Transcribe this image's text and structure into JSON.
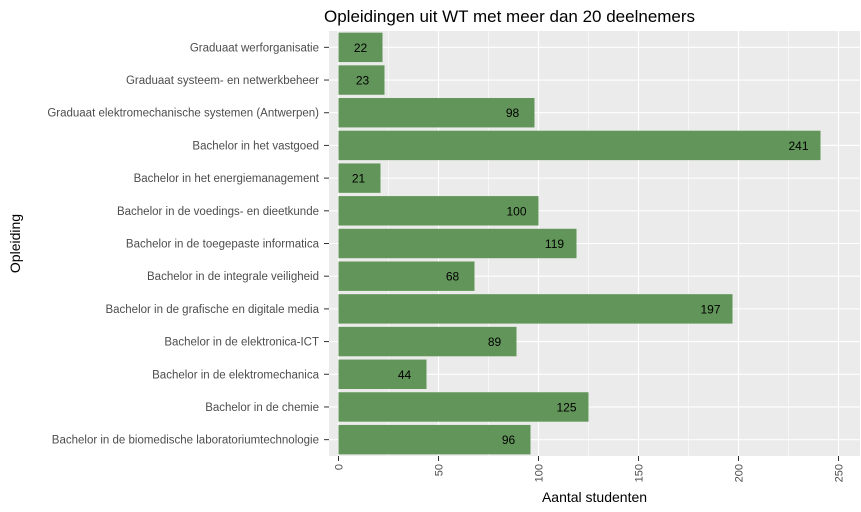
{
  "chart_data": {
    "type": "bar",
    "orientation": "horizontal",
    "title": "Opleidingen uit WT met meer dan 20 deelnemers",
    "xlabel": "Aantal studenten",
    "ylabel": "Opleiding",
    "categories": [
      "Graduaat werforganisatie",
      "Graduaat systeem- en netwerkbeheer",
      "Graduaat elektromechanische systemen (Antwerpen)",
      "Bachelor in het vastgoed",
      "Bachelor in het energiemanagement",
      "Bachelor in de voedings- en dieetkunde",
      "Bachelor in de toegepaste informatica",
      "Bachelor in de integrale veiligheid",
      "Bachelor in de grafische en digitale media",
      "Bachelor in de elektronica-ICT",
      "Bachelor in de elektromechanica",
      "Bachelor in de chemie",
      "Bachelor in de biomedische laboratoriumtechnologie"
    ],
    "values": [
      22,
      23,
      98,
      241,
      21,
      100,
      119,
      68,
      197,
      89,
      44,
      125,
      96
    ],
    "xlim": [
      0,
      250
    ],
    "xticks": [
      "0",
      "50",
      "100",
      "150",
      "200",
      "250"
    ],
    "xtick_values": [
      0,
      50,
      100,
      150,
      200,
      250
    ],
    "grid": true,
    "bar_color": "#629559",
    "panel_color": "#ebebeb",
    "grid_color": "#ffffff"
  }
}
